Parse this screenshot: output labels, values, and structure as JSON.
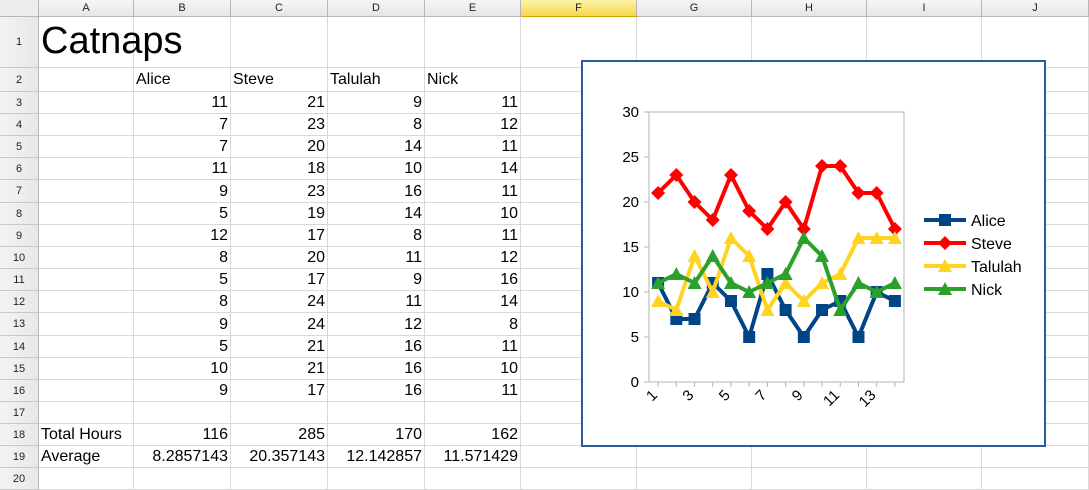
{
  "columns": [
    "A",
    "B",
    "C",
    "D",
    "E",
    "F",
    "G",
    "H",
    "I",
    "J"
  ],
  "selected_column": "F",
  "rows": [
    "1",
    "2",
    "3",
    "4",
    "5",
    "6",
    "7",
    "8",
    "9",
    "10",
    "11",
    "12",
    "13",
    "14",
    "15",
    "16",
    "17",
    "18",
    "19",
    "20"
  ],
  "sheet_title": "Catnaps",
  "headers": [
    "Alice",
    "Steve",
    "Talulah",
    "Nick"
  ],
  "table": [
    [
      11,
      21,
      9,
      11
    ],
    [
      7,
      23,
      8,
      12
    ],
    [
      7,
      20,
      14,
      11
    ],
    [
      11,
      18,
      10,
      14
    ],
    [
      9,
      23,
      16,
      11
    ],
    [
      5,
      19,
      14,
      10
    ],
    [
      12,
      17,
      8,
      11
    ],
    [
      8,
      20,
      11,
      12
    ],
    [
      5,
      17,
      9,
      16
    ],
    [
      8,
      24,
      11,
      14
    ],
    [
      9,
      24,
      12,
      8
    ],
    [
      5,
      21,
      16,
      11
    ],
    [
      10,
      21,
      16,
      10
    ],
    [
      9,
      17,
      16,
      11
    ]
  ],
  "total_label": "Total Hours",
  "totals": [
    "116",
    "285",
    "170",
    "162"
  ],
  "average_label": "Average",
  "averages": [
    "8.2857143",
    "20.357143",
    "12.142857",
    "11.571429"
  ],
  "chart_data": {
    "type": "line",
    "x": [
      1,
      2,
      3,
      4,
      5,
      6,
      7,
      8,
      9,
      10,
      11,
      12,
      13,
      14
    ],
    "x_tick_labels": [
      "1",
      "3",
      "5",
      "7",
      "9",
      "11",
      "13"
    ],
    "ylim": [
      0,
      30
    ],
    "y_ticks": [
      0,
      5,
      10,
      15,
      20,
      25,
      30
    ],
    "legend_position": "right",
    "series": [
      {
        "name": "Alice",
        "color": "#004586",
        "marker": "square",
        "values": [
          11,
          7,
          7,
          11,
          9,
          5,
          12,
          8,
          5,
          8,
          9,
          5,
          10,
          9
        ]
      },
      {
        "name": "Steve",
        "color": "#ff0000",
        "marker": "diamond",
        "values": [
          21,
          23,
          20,
          18,
          23,
          19,
          17,
          20,
          17,
          24,
          24,
          21,
          21,
          17
        ]
      },
      {
        "name": "Talulah",
        "color": "#ffd320",
        "marker": "triangle-up",
        "values": [
          9,
          8,
          14,
          10,
          16,
          14,
          8,
          11,
          9,
          11,
          12,
          16,
          16,
          16
        ]
      },
      {
        "name": "Nick",
        "color": "#2ca02c",
        "marker": "triangle-up",
        "values": [
          11,
          12,
          11,
          14,
          11,
          10,
          11,
          12,
          16,
          14,
          8,
          11,
          10,
          11
        ]
      }
    ]
  }
}
